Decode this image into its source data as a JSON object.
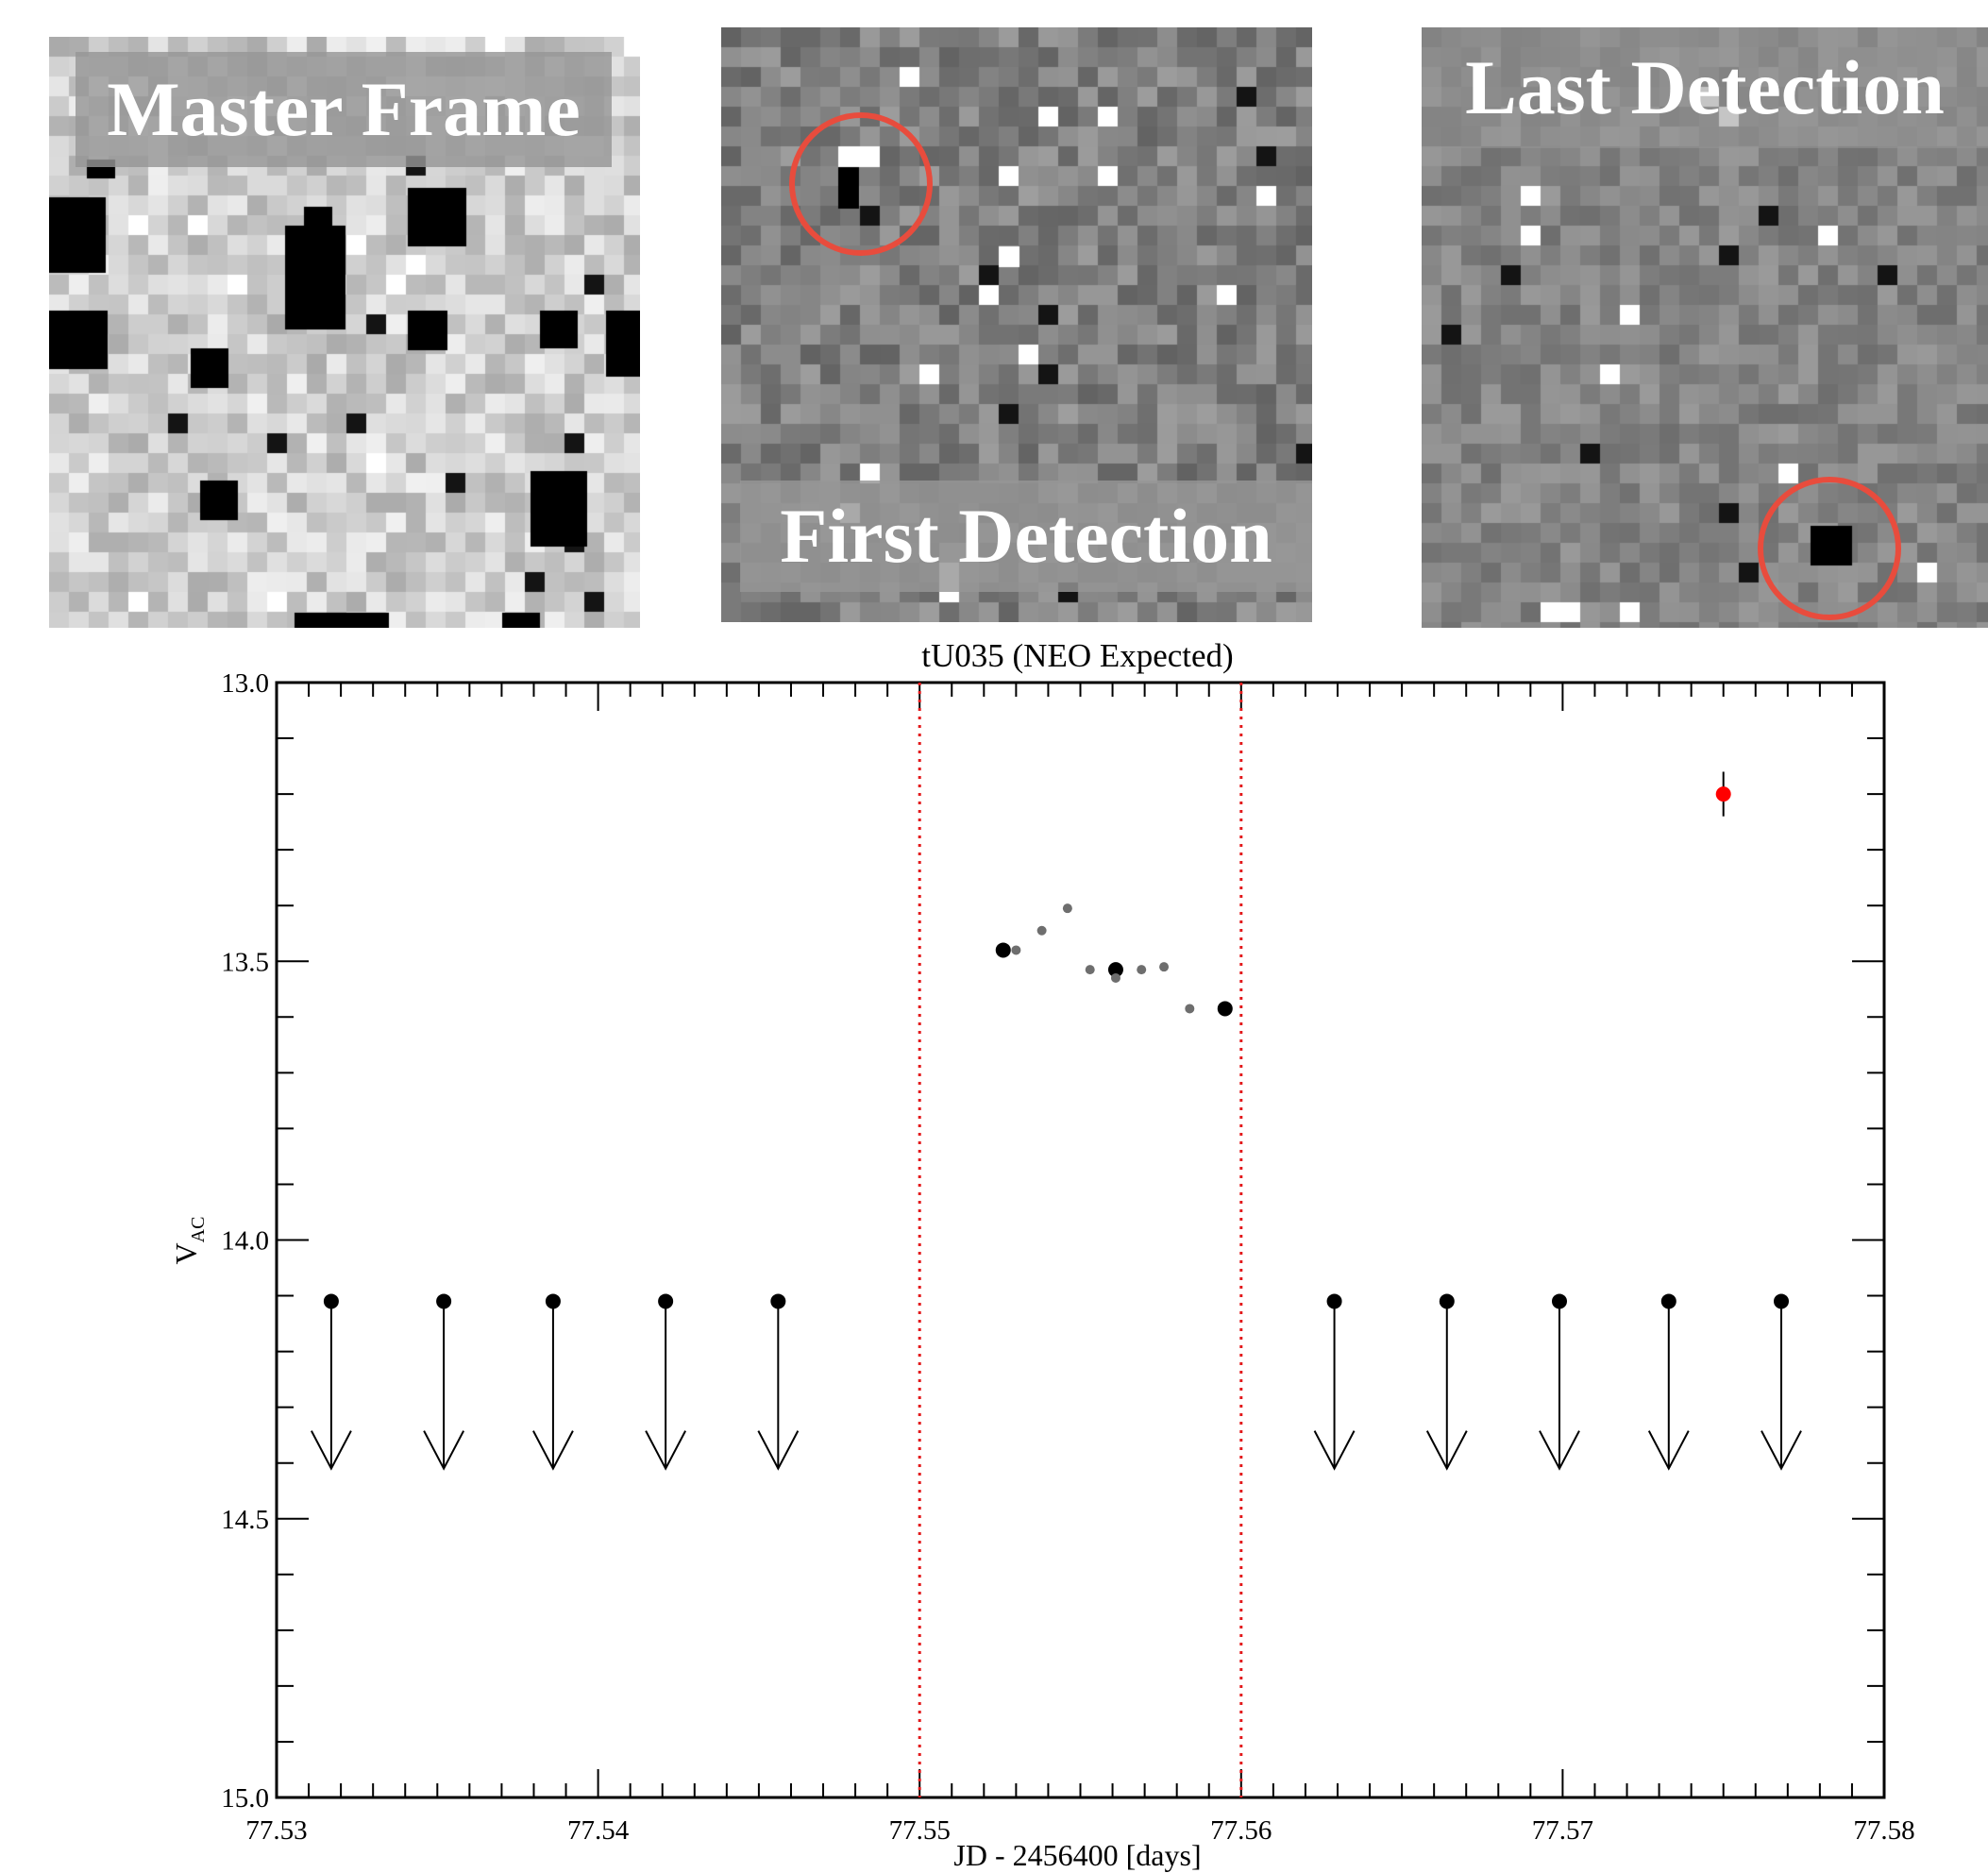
{
  "panels": {
    "master": {
      "label": "Master Frame"
    },
    "first": {
      "label": "First Detection"
    },
    "last": {
      "label": "Last Detection"
    },
    "ring_color": "#e84c3d"
  },
  "chart_data": {
    "type": "scatter",
    "title": "tU035 (NEO Expected)",
    "xlabel": "JD - 2456400 [days]",
    "ylabel": "V",
    "ylabel_sub": "AC",
    "xlim": [
      77.53,
      77.58
    ],
    "ylim": [
      15.0,
      13.0
    ],
    "y_inverted": true,
    "xticks": [
      "77.53",
      "77.54",
      "77.55",
      "77.56",
      "77.57",
      "77.58"
    ],
    "yticks": [
      "13.0",
      "13.5",
      "14.0",
      "14.5",
      "15.0"
    ],
    "grid": false,
    "vlines": {
      "x": [
        77.55,
        77.56
      ],
      "color": "#e31a1c",
      "style": "dotted"
    },
    "series": [
      {
        "marker": "large black dot",
        "color": "#000000",
        "x": [
          77.5526,
          77.5561,
          77.5595
        ],
        "y": [
          13.48,
          13.515,
          13.585
        ]
      },
      {
        "marker": "small grey dot",
        "color": "#6e6e6e",
        "x": [
          77.553,
          77.5538,
          77.5546,
          77.5553,
          77.5561,
          77.5569,
          77.5576,
          77.5584
        ],
        "y": [
          13.48,
          13.445,
          13.405,
          13.515,
          13.53,
          13.515,
          13.51,
          13.585
        ]
      },
      {
        "marker": "red dot with error bar",
        "color": "#ff0000",
        "x": [
          77.575
        ],
        "y": [
          13.2
        ],
        "yerr": [
          0.04
        ]
      },
      {
        "marker": "upper limit arrow",
        "color": "#000000",
        "x": [
          77.5317,
          77.5352,
          77.5386,
          77.5421,
          77.5456,
          77.5629,
          77.5664,
          77.5699,
          77.5733,
          77.5768
        ],
        "y": [
          14.11,
          14.11,
          14.11,
          14.11,
          14.11,
          14.11,
          14.11,
          14.11,
          14.11,
          14.11
        ],
        "arrow_length": 0.3
      }
    ]
  }
}
